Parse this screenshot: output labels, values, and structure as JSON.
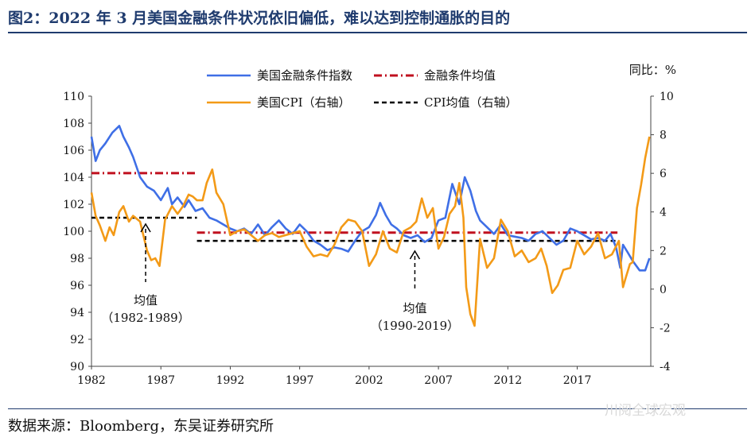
{
  "title": "图2：2022 年 3 月美国金融条件状况依旧偏低，难以达到控制通胀的目的",
  "source": "数据来源：Bloomberg，东吴证券研究所",
  "watermark": "川阅全球宏观",
  "colors": {
    "fci": "#3f6fe6",
    "cpi": "#f39a17",
    "fci_mean": "#c0101f",
    "cpi_mean": "#000000",
    "title": "#1f3b6e"
  },
  "chart_data": {
    "type": "line",
    "title": "",
    "right_unit_label": "同比：%",
    "x_ticks": [
      "1982",
      "1987",
      "1992",
      "1997",
      "2002",
      "2007",
      "2012",
      "2017"
    ],
    "xlim": [
      1982,
      2022.3
    ],
    "y_left": {
      "lim": [
        90,
        110
      ],
      "ticks": [
        "110",
        "108",
        "106",
        "104",
        "102",
        "100",
        "98",
        "96",
        "94",
        "92",
        "90"
      ]
    },
    "y_right": {
      "lim": [
        -4,
        10
      ],
      "ticks": [
        "10",
        "8",
        "6",
        "4",
        "2",
        "0",
        "-2",
        "-4"
      ]
    },
    "legend": [
      "美国金融条件指数",
      "金融条件均值",
      "美国CPI（右轴）",
      "CPI均值（右轴）"
    ],
    "series": [
      {
        "name": "美国金融条件指数",
        "axis": "left",
        "x": [
          1982.0,
          1982.3,
          1982.6,
          1983.0,
          1983.5,
          1984.0,
          1984.3,
          1984.7,
          1985.0,
          1985.5,
          1986.0,
          1986.5,
          1987.0,
          1987.5,
          1987.8,
          1988.2,
          1988.7,
          1989.0,
          1989.5,
          1990.0,
          1990.5,
          1991.0,
          1991.5,
          1992.0,
          1992.5,
          1993.0,
          1993.5,
          1994.0,
          1994.5,
          1995.0,
          1995.5,
          1996.0,
          1996.5,
          1997.0,
          1997.5,
          1998.0,
          1998.5,
          1999.0,
          1999.5,
          2000.0,
          2000.5,
          2001.0,
          2001.5,
          2002.0,
          2002.5,
          2002.8,
          2003.2,
          2003.6,
          2004.0,
          2004.5,
          2005.0,
          2005.5,
          2006.0,
          2006.5,
          2007.0,
          2007.5,
          2008.0,
          2008.5,
          2008.9,
          2009.3,
          2009.7,
          2010.0,
          2010.5,
          2011.0,
          2011.5,
          2012.0,
          2012.5,
          2013.0,
          2013.5,
          2014.0,
          2014.5,
          2015.0,
          2015.5,
          2016.0,
          2016.5,
          2017.0,
          2017.5,
          2018.0,
          2018.5,
          2019.0,
          2019.4,
          2019.8,
          2020.1,
          2020.3,
          2020.6,
          2021.0,
          2021.5,
          2021.9,
          2022.2
        ],
        "values": [
          107.0,
          105.2,
          106.0,
          106.5,
          107.3,
          107.8,
          107.0,
          106.2,
          105.5,
          104.0,
          103.3,
          103.0,
          102.3,
          103.2,
          102.0,
          102.5,
          101.8,
          102.3,
          101.5,
          101.7,
          101.0,
          100.8,
          100.5,
          100.2,
          100.0,
          100.2,
          99.8,
          100.5,
          99.7,
          100.3,
          100.8,
          100.2,
          99.8,
          100.5,
          100.0,
          99.3,
          99.0,
          98.6,
          98.8,
          98.7,
          98.5,
          99.3,
          100.0,
          100.3,
          101.2,
          102.1,
          101.2,
          100.5,
          100.2,
          99.7,
          99.5,
          99.7,
          99.2,
          99.5,
          100.8,
          101.0,
          103.5,
          102.0,
          104.0,
          103.0,
          101.5,
          100.8,
          100.3,
          99.8,
          100.5,
          99.7,
          99.6,
          99.5,
          99.3,
          99.8,
          100.0,
          99.5,
          99.0,
          99.3,
          100.2,
          100.0,
          99.7,
          99.4,
          99.5,
          99.3,
          99.8,
          98.8,
          97.3,
          99.0,
          98.5,
          97.8,
          97.1,
          97.1,
          98.0
        ]
      },
      {
        "name": "美国CPI（右轴）",
        "axis": "right",
        "x": [
          1982.0,
          1982.3,
          1982.6,
          1983.0,
          1983.3,
          1983.6,
          1984.0,
          1984.3,
          1984.7,
          1985.0,
          1985.5,
          1986.0,
          1986.3,
          1986.6,
          1986.9,
          1987.3,
          1987.8,
          1988.2,
          1988.6,
          1989.0,
          1989.3,
          1989.6,
          1990.0,
          1990.3,
          1990.7,
          1991.0,
          1991.5,
          1992.0,
          1992.5,
          1993.0,
          1993.5,
          1994.0,
          1994.5,
          1995.0,
          1995.5,
          1996.0,
          1996.5,
          1997.0,
          1997.5,
          1998.0,
          1998.5,
          1999.0,
          1999.5,
          2000.0,
          2000.5,
          2001.0,
          2001.5,
          2002.0,
          2002.5,
          2003.0,
          2003.5,
          2004.0,
          2004.5,
          2005.0,
          2005.4,
          2005.8,
          2006.2,
          2006.6,
          2007.0,
          2007.4,
          2007.8,
          2008.2,
          2008.5,
          2008.8,
          2009.0,
          2009.3,
          2009.6,
          2010.0,
          2010.5,
          2011.0,
          2011.5,
          2012.0,
          2012.5,
          2013.0,
          2013.5,
          2014.0,
          2014.4,
          2014.8,
          2015.2,
          2015.6,
          2016.0,
          2016.5,
          2017.0,
          2017.5,
          2018.0,
          2018.5,
          2019.0,
          2019.5,
          2020.0,
          2020.3,
          2020.5,
          2020.8,
          2021.0,
          2021.3,
          2021.6,
          2021.9,
          2022.2
        ],
        "values": [
          5.0,
          3.8,
          3.3,
          2.5,
          3.2,
          2.8,
          4.0,
          4.3,
          3.5,
          3.8,
          3.5,
          2.0,
          1.5,
          1.6,
          1.2,
          3.6,
          4.3,
          3.9,
          4.3,
          4.9,
          4.8,
          4.6,
          4.6,
          5.5,
          6.2,
          5.0,
          4.4,
          2.8,
          3.0,
          3.1,
          2.8,
          2.5,
          2.8,
          2.9,
          2.7,
          2.8,
          2.9,
          3.0,
          2.2,
          1.7,
          1.8,
          1.7,
          2.3,
          3.2,
          3.6,
          3.5,
          3.0,
          1.2,
          1.8,
          3.0,
          2.1,
          1.9,
          3.0,
          3.2,
          3.5,
          4.7,
          3.7,
          4.2,
          2.1,
          2.7,
          3.9,
          4.3,
          5.5,
          3.7,
          0.1,
          -1.3,
          -1.9,
          2.6,
          1.1,
          1.6,
          3.6,
          3.0,
          1.7,
          2.0,
          1.4,
          1.6,
          2.1,
          1.2,
          -0.2,
          0.2,
          1.0,
          1.1,
          2.5,
          1.8,
          2.2,
          2.9,
          1.6,
          1.8,
          2.5,
          0.1,
          0.6,
          1.3,
          1.4,
          4.2,
          5.4,
          6.8,
          7.9
        ]
      }
    ],
    "means": [
      {
        "name": "金融条件均值",
        "axis": "left",
        "segments": [
          {
            "x": [
              1982,
              1989.6
            ],
            "y": 104.3
          },
          {
            "x": [
              1989.6,
              2019.9
            ],
            "y": 99.9
          }
        ]
      },
      {
        "name": "CPI均值（右轴）",
        "axis": "right",
        "segments": [
          {
            "x": [
              1982,
              1989.6
            ],
            "y": 3.7
          },
          {
            "x": [
              1989.6,
              2019.9
            ],
            "y": 2.5
          }
        ]
      }
    ],
    "annotations": [
      {
        "label": "均值",
        "period": "（1982-1989）",
        "x": 1985.9
      },
      {
        "label": "均值",
        "period": "（1990-2019）",
        "x": 2005.3
      }
    ]
  }
}
